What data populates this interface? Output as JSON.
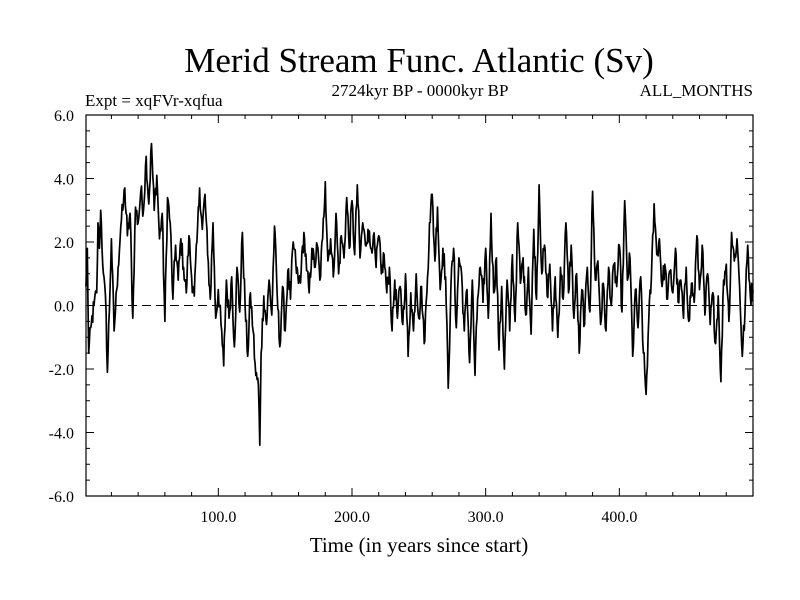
{
  "chart_data": {
    "type": "line",
    "title": "Merid Stream Func. Atlantic (Sv)",
    "subtitle_left": "Expt = xqFVr-xqfua",
    "subtitle_center": "2724kyr BP - 0000kyr BP",
    "subtitle_right": "ALL_MONTHS",
    "xlabel": "Time (in years since start)",
    "ylabel": "",
    "xlim": [
      1,
      500
    ],
    "ylim": [
      -6,
      6
    ],
    "x_ticks": [
      100,
      200,
      300,
      400
    ],
    "x_tick_labels": [
      "100.0",
      "200.0",
      "300.0",
      "400.0"
    ],
    "y_ticks": [
      -6,
      -4,
      -2,
      0,
      2,
      4,
      6
    ],
    "y_tick_labels": [
      "-6.0",
      "-4.0",
      "-2.0",
      "0.0",
      "2.0",
      "4.0",
      "6.0"
    ],
    "zero_line": "dashed",
    "line_color": "#000000",
    "anchors": [
      [
        1,
        0.6
      ],
      [
        2,
        1.8
      ],
      [
        3,
        -1.5
      ],
      [
        5,
        -0.6
      ],
      [
        7,
        0.0
      ],
      [
        9,
        0.4
      ],
      [
        10,
        2.6
      ],
      [
        11,
        1.8
      ],
      [
        12,
        3.0
      ],
      [
        14,
        1.0
      ],
      [
        16,
        -0.2
      ],
      [
        17,
        -2.1
      ],
      [
        19,
        0.6
      ],
      [
        20,
        2.1
      ],
      [
        22,
        -0.8
      ],
      [
        24,
        0.5
      ],
      [
        25,
        1.2
      ],
      [
        27,
        2.5
      ],
      [
        29,
        3.2
      ],
      [
        30,
        3.7
      ],
      [
        32,
        2.2
      ],
      [
        34,
        2.9
      ],
      [
        36,
        -0.4
      ],
      [
        38,
        3.1
      ],
      [
        40,
        2.6
      ],
      [
        42,
        3.6
      ],
      [
        44,
        3.0
      ],
      [
        46,
        4.7
      ],
      [
        48,
        3.2
      ],
      [
        50,
        5.1
      ],
      [
        52,
        3.0
      ],
      [
        54,
        4.1
      ],
      [
        56,
        2.1
      ],
      [
        58,
        2.9
      ],
      [
        60,
        -0.5
      ],
      [
        62,
        3.4
      ],
      [
        64,
        2.6
      ],
      [
        66,
        0.2
      ],
      [
        68,
        1.9
      ],
      [
        70,
        0.8
      ],
      [
        72,
        2.1
      ],
      [
        74,
        1.2
      ],
      [
        76,
        0.4
      ],
      [
        78,
        2.2
      ],
      [
        80,
        0.9
      ],
      [
        82,
        0.3
      ],
      [
        84,
        2.0
      ],
      [
        86,
        3.7
      ],
      [
        88,
        2.4
      ],
      [
        90,
        3.5
      ],
      [
        92,
        1.6
      ],
      [
        94,
        0.2
      ],
      [
        96,
        2.6
      ],
      [
        98,
        -0.4
      ],
      [
        100,
        0.5
      ],
      [
        102,
        -0.6
      ],
      [
        104,
        -1.9
      ],
      [
        106,
        0.8
      ],
      [
        108,
        -0.4
      ],
      [
        110,
        0.9
      ],
      [
        112,
        -1.3
      ],
      [
        114,
        1.2
      ],
      [
        116,
        -0.2
      ],
      [
        118,
        2.3
      ],
      [
        120,
        0.0
      ],
      [
        122,
        -1.6
      ],
      [
        124,
        0.4
      ],
      [
        126,
        -0.8
      ],
      [
        128,
        -2.2
      ],
      [
        130,
        -2.5
      ],
      [
        131,
        -4.4
      ],
      [
        132,
        -1.5
      ],
      [
        134,
        0.3
      ],
      [
        136,
        -0.6
      ],
      [
        138,
        0.8
      ],
      [
        140,
        -0.3
      ],
      [
        142,
        2.5
      ],
      [
        144,
        0.4
      ],
      [
        146,
        -1.3
      ],
      [
        148,
        0.6
      ],
      [
        150,
        -0.8
      ],
      [
        152,
        1.1
      ],
      [
        154,
        0.2
      ],
      [
        156,
        2.0
      ],
      [
        158,
        1.3
      ],
      [
        160,
        0.7
      ],
      [
        162,
        1.1
      ],
      [
        164,
        2.3
      ],
      [
        166,
        1.1
      ],
      [
        168,
        0.4
      ],
      [
        170,
        1.8
      ],
      [
        172,
        1.2
      ],
      [
        174,
        1.9
      ],
      [
        176,
        0.8
      ],
      [
        178,
        2.1
      ],
      [
        180,
        3.9
      ],
      [
        182,
        1.4
      ],
      [
        184,
        2.1
      ],
      [
        186,
        0.9
      ],
      [
        188,
        2.9
      ],
      [
        190,
        1.0
      ],
      [
        192,
        2.2
      ],
      [
        194,
        1.5
      ],
      [
        196,
        3.4
      ],
      [
        198,
        1.8
      ],
      [
        200,
        3.3
      ],
      [
        202,
        1.6
      ],
      [
        204,
        3.8
      ],
      [
        206,
        1.5
      ],
      [
        208,
        2.6
      ],
      [
        210,
        1.9
      ],
      [
        212,
        2.4
      ],
      [
        214,
        1.8
      ],
      [
        216,
        2.2
      ],
      [
        218,
        1.2
      ],
      [
        220,
        2.2
      ],
      [
        222,
        1.0
      ],
      [
        224,
        1.6
      ],
      [
        226,
        0.4
      ],
      [
        228,
        1.2
      ],
      [
        230,
        -0.8
      ],
      [
        232,
        0.8
      ],
      [
        234,
        -0.4
      ],
      [
        236,
        0.6
      ],
      [
        238,
        -0.6
      ],
      [
        240,
        1.0
      ],
      [
        242,
        -1.6
      ],
      [
        244,
        0.4
      ],
      [
        246,
        -0.8
      ],
      [
        248,
        1.0
      ],
      [
        250,
        -0.4
      ],
      [
        252,
        0.6
      ],
      [
        254,
        -1.2
      ],
      [
        256,
        0.4
      ],
      [
        258,
        2.6
      ],
      [
        260,
        3.5
      ],
      [
        262,
        1.4
      ],
      [
        264,
        3.1
      ],
      [
        266,
        0.5
      ],
      [
        268,
        1.8
      ],
      [
        270,
        0.9
      ],
      [
        272,
        -2.6
      ],
      [
        274,
        0.6
      ],
      [
        276,
        1.8
      ],
      [
        278,
        -0.7
      ],
      [
        280,
        1.5
      ],
      [
        282,
        1.0
      ],
      [
        284,
        -0.8
      ],
      [
        286,
        0.5
      ],
      [
        288,
        -1.8
      ],
      [
        290,
        0.8
      ],
      [
        292,
        -2.2
      ],
      [
        294,
        0.2
      ],
      [
        296,
        1.2
      ],
      [
        298,
        0.1
      ],
      [
        300,
        1.8
      ],
      [
        302,
        -0.4
      ],
      [
        304,
        2.9
      ],
      [
        306,
        0.4
      ],
      [
        308,
        1.5
      ],
      [
        310,
        -1.4
      ],
      [
        312,
        0.6
      ],
      [
        314,
        -2.0
      ],
      [
        316,
        0.8
      ],
      [
        318,
        -0.8
      ],
      [
        320,
        1.6
      ],
      [
        322,
        -0.5
      ],
      [
        324,
        2.6
      ],
      [
        326,
        0.7
      ],
      [
        328,
        1.5
      ],
      [
        330,
        -0.3
      ],
      [
        332,
        1.2
      ],
      [
        334,
        -0.9
      ],
      [
        336,
        2.4
      ],
      [
        338,
        0.2
      ],
      [
        340,
        3.8
      ],
      [
        342,
        1.0
      ],
      [
        344,
        1.9
      ],
      [
        346,
        0.3
      ],
      [
        348,
        1.3
      ],
      [
        350,
        -0.8
      ],
      [
        352,
        0.9
      ],
      [
        354,
        -1.0
      ],
      [
        356,
        1.2
      ],
      [
        358,
        0.2
      ],
      [
        360,
        2.6
      ],
      [
        362,
        0.4
      ],
      [
        364,
        1.9
      ],
      [
        366,
        -0.4
      ],
      [
        368,
        1.0
      ],
      [
        370,
        -1.5
      ],
      [
        372,
        0.5
      ],
      [
        374,
        -0.6
      ],
      [
        376,
        1.2
      ],
      [
        378,
        -0.2
      ],
      [
        380,
        3.6
      ],
      [
        382,
        0.8
      ],
      [
        384,
        1.4
      ],
      [
        386,
        -0.6
      ],
      [
        388,
        0.7
      ],
      [
        390,
        -0.8
      ],
      [
        392,
        1.2
      ],
      [
        394,
        0.0
      ],
      [
        396,
        1.3
      ],
      [
        398,
        0.6
      ],
      [
        400,
        1.9
      ],
      [
        402,
        -0.2
      ],
      [
        404,
        3.3
      ],
      [
        406,
        0.8
      ],
      [
        408,
        1.5
      ],
      [
        410,
        -1.6
      ],
      [
        412,
        0.5
      ],
      [
        414,
        -0.7
      ],
      [
        416,
        0.9
      ],
      [
        418,
        -1.5
      ],
      [
        420,
        -2.8
      ],
      [
        422,
        -0.5
      ],
      [
        424,
        0.9
      ],
      [
        426,
        3.2
      ],
      [
        428,
        1.6
      ],
      [
        430,
        2.1
      ],
      [
        432,
        0.6
      ],
      [
        434,
        1.3
      ],
      [
        436,
        0.2
      ],
      [
        438,
        1.1
      ],
      [
        440,
        0.4
      ],
      [
        442,
        1.8
      ],
      [
        444,
        0.1
      ],
      [
        446,
        0.8
      ],
      [
        448,
        -0.4
      ],
      [
        450,
        1.2
      ],
      [
        452,
        -0.5
      ],
      [
        454,
        0.7
      ],
      [
        456,
        0.1
      ],
      [
        458,
        2.2
      ],
      [
        460,
        0.5
      ],
      [
        462,
        1.9
      ],
      [
        464,
        -0.3
      ],
      [
        466,
        1.0
      ],
      [
        468,
        -0.6
      ],
      [
        470,
        0.4
      ],
      [
        472,
        -1.2
      ],
      [
        474,
        0.3
      ],
      [
        476,
        -2.4
      ],
      [
        478,
        0.8
      ],
      [
        480,
        1.3
      ],
      [
        482,
        -0.5
      ],
      [
        484,
        2.3
      ],
      [
        486,
        1.4
      ],
      [
        488,
        2.1
      ],
      [
        490,
        0.6
      ],
      [
        492,
        -1.6
      ],
      [
        494,
        -0.2
      ],
      [
        496,
        1.9
      ],
      [
        498,
        0.3
      ],
      [
        500,
        0.5
      ]
    ]
  }
}
